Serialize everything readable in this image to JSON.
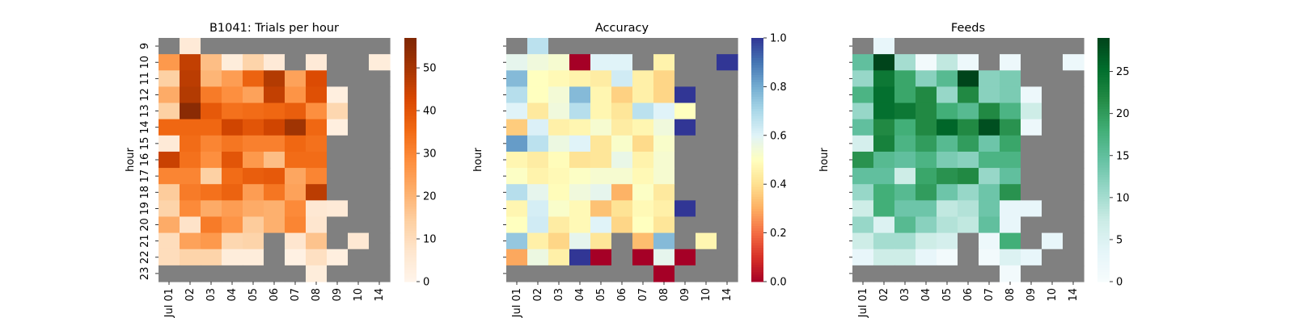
{
  "chart_data": [
    {
      "type": "heatmap",
      "title": "B1041: Trials per hour",
      "ylabel": "hour",
      "xlabel": "",
      "x": [
        "Jul 01",
        "02",
        "03",
        "04",
        "05",
        "06",
        "07",
        "08",
        "09",
        "10",
        "14"
      ],
      "y": [
        "9",
        "10",
        "11",
        "12",
        "13",
        "14",
        "15",
        "16",
        "17",
        "18",
        "19",
        "20",
        "21",
        "22",
        "23"
      ],
      "colormap": "Oranges",
      "missing_color": "#808080",
      "vmin": 0,
      "vmax": 57,
      "colorbar_ticks": [
        "0",
        "10",
        "20",
        "30",
        "40",
        "50"
      ],
      "colorbar_tick_values": [
        0,
        10,
        20,
        30,
        40,
        50
      ],
      "values": [
        [
          null,
          5,
          null,
          null,
          null,
          null,
          null,
          null,
          null,
          null,
          null
        ],
        [
          26,
          46,
          18,
          4,
          13,
          5,
          null,
          5,
          null,
          null,
          4
        ],
        [
          14,
          47,
          20,
          25,
          37,
          48,
          24,
          42,
          null,
          null,
          null
        ],
        [
          22,
          48,
          32,
          28,
          24,
          46,
          27,
          41,
          3,
          null,
          null
        ],
        [
          14,
          55,
          39,
          34,
          35,
          36,
          38,
          28,
          12,
          null,
          null
        ],
        [
          36,
          36,
          36,
          44,
          40,
          44,
          51,
          36,
          3,
          null,
          null
        ],
        [
          5,
          35,
          30,
          33,
          31,
          31,
          36,
          34,
          null,
          null,
          null
        ],
        [
          45,
          34,
          28,
          40,
          26,
          18,
          35,
          35,
          null,
          null,
          null
        ],
        [
          30,
          30,
          14,
          35,
          38,
          39,
          23,
          30,
          null,
          null,
          null
        ],
        [
          15,
          32,
          34,
          37,
          25,
          33,
          24,
          47,
          null,
          null,
          null
        ],
        [
          13,
          29,
          22,
          25,
          22,
          21,
          29,
          6,
          5,
          null,
          null
        ],
        [
          22,
          8,
          32,
          27,
          15,
          21,
          30,
          7,
          null,
          null,
          null
        ],
        [
          10,
          24,
          26,
          12,
          13,
          null,
          7,
          17,
          null,
          6,
          null
        ],
        [
          10,
          13,
          13,
          4,
          4,
          null,
          2,
          9,
          3,
          null,
          null
        ],
        [
          null,
          null,
          null,
          null,
          null,
          null,
          null,
          4,
          null,
          null,
          null
        ]
      ]
    },
    {
      "type": "heatmap",
      "title": "Accuracy",
      "ylabel": "hour",
      "xlabel": "",
      "x": [
        "Jul 01",
        "02",
        "03",
        "04",
        "05",
        "06",
        "07",
        "08",
        "09",
        "10",
        "14"
      ],
      "y": [
        "9",
        "10",
        "11",
        "12",
        "13",
        "14",
        "15",
        "16",
        "17",
        "18",
        "19",
        "20",
        "21",
        "22",
        "23"
      ],
      "colormap": "RdYlBu",
      "missing_color": "#808080",
      "vmin": 0,
      "vmax": 1,
      "colorbar_ticks": [
        "0.0",
        "0.2",
        "0.4",
        "0.6",
        "0.8",
        "1.0"
      ],
      "colorbar_tick_values": [
        0,
        0.2,
        0.4,
        0.6,
        0.8,
        1.0
      ],
      "values": [
        [
          null,
          0.67,
          null,
          null,
          null,
          null,
          null,
          null,
          null,
          null,
          null
        ],
        [
          0.58,
          0.55,
          0.53,
          0.0,
          0.6,
          0.6,
          null,
          0.46,
          null,
          null,
          1.0
        ],
        [
          0.77,
          0.5,
          0.48,
          0.46,
          0.44,
          0.63,
          0.45,
          0.38,
          null,
          null,
          null
        ],
        [
          0.68,
          0.5,
          0.54,
          0.77,
          0.47,
          0.37,
          0.45,
          0.38,
          1.0,
          null,
          null
        ],
        [
          0.6,
          0.43,
          0.55,
          0.68,
          0.47,
          0.42,
          0.67,
          0.6,
          0.5,
          null,
          null
        ],
        [
          0.36,
          0.61,
          0.45,
          0.47,
          0.53,
          0.44,
          0.47,
          0.55,
          1.0,
          null,
          null
        ],
        [
          0.83,
          0.67,
          0.56,
          0.6,
          0.42,
          0.52,
          0.39,
          0.52,
          null,
          null,
          null
        ],
        [
          0.47,
          0.44,
          0.49,
          0.41,
          0.42,
          0.57,
          0.46,
          0.53,
          null,
          null,
          null
        ],
        [
          0.51,
          0.46,
          0.48,
          0.51,
          0.53,
          0.53,
          0.48,
          0.53,
          null,
          null,
          null
        ],
        [
          0.68,
          0.58,
          0.49,
          0.55,
          0.58,
          0.31,
          0.51,
          0.43,
          null,
          null,
          null
        ],
        [
          0.47,
          0.62,
          0.52,
          0.48,
          0.34,
          0.41,
          0.48,
          0.45,
          1.0,
          null,
          null
        ],
        [
          0.5,
          0.63,
          0.44,
          0.48,
          0.6,
          0.38,
          0.5,
          0.42,
          null,
          null,
          null
        ],
        [
          0.74,
          0.45,
          0.38,
          0.58,
          0.42,
          null,
          0.33,
          0.77,
          null,
          0.47,
          null
        ],
        [
          0.29,
          0.56,
          0.45,
          1.0,
          0.0,
          null,
          0.0,
          0.58,
          0.0,
          null,
          null
        ],
        [
          null,
          null,
          null,
          null,
          null,
          null,
          null,
          0.0,
          null,
          null,
          null
        ]
      ]
    },
    {
      "type": "heatmap",
      "title": "Feeds",
      "ylabel": "hour",
      "xlabel": "",
      "x": [
        "Jul 01",
        "02",
        "03",
        "04",
        "05",
        "06",
        "07",
        "08",
        "09",
        "10",
        "14"
      ],
      "y": [
        "9",
        "10",
        "11",
        "12",
        "13",
        "14",
        "15",
        "16",
        "17",
        "18",
        "19",
        "20",
        "21",
        "22",
        "23"
      ],
      "colormap": "BuGn",
      "missing_color": "#808080",
      "vmin": 0,
      "vmax": 29,
      "colorbar_ticks": [
        "0",
        "5",
        "10",
        "15",
        "20",
        "25"
      ],
      "colorbar_tick_values": [
        0,
        5,
        10,
        15,
        20,
        25
      ],
      "values": [
        [
          null,
          3,
          null,
          null,
          null,
          null,
          null,
          null,
          null,
          null,
          null
        ],
        [
          15,
          29,
          10,
          1,
          8,
          2,
          null,
          2,
          null,
          null,
          2
        ],
        [
          11,
          24,
          19,
          12,
          16,
          29,
          12,
          13,
          null,
          null,
          null
        ],
        [
          17,
          25,
          19,
          22,
          11,
          22,
          12,
          13,
          2,
          null,
          null
        ],
        [
          11,
          25,
          24,
          22,
          18,
          16,
          22,
          17,
          7,
          null,
          null
        ],
        [
          15,
          22,
          18,
          22,
          26,
          22,
          28,
          21,
          2,
          null,
          null
        ],
        [
          6,
          23,
          17,
          20,
          16,
          20,
          14,
          19,
          null,
          null,
          null
        ],
        [
          21,
          16,
          15,
          17,
          13,
          12,
          17,
          17,
          null,
          null,
          null
        ],
        [
          15,
          15,
          7,
          19,
          21,
          22,
          11,
          15,
          null,
          null,
          null
        ],
        [
          11,
          18,
          16,
          20,
          14,
          11,
          14,
          21,
          null,
          null,
          null
        ],
        [
          7,
          18,
          14,
          14,
          8,
          9,
          14,
          3,
          3,
          null,
          null
        ],
        [
          11,
          5,
          16,
          12,
          9,
          8,
          15,
          3,
          null,
          null,
          null
        ],
        [
          7,
          10,
          10,
          7,
          6,
          null,
          2,
          18,
          null,
          3,
          null
        ],
        [
          3,
          7,
          7,
          3,
          1,
          null,
          1,
          5,
          3,
          null,
          null
        ],
        [
          null,
          null,
          null,
          null,
          null,
          null,
          null,
          1,
          null,
          null,
          null
        ]
      ]
    }
  ]
}
